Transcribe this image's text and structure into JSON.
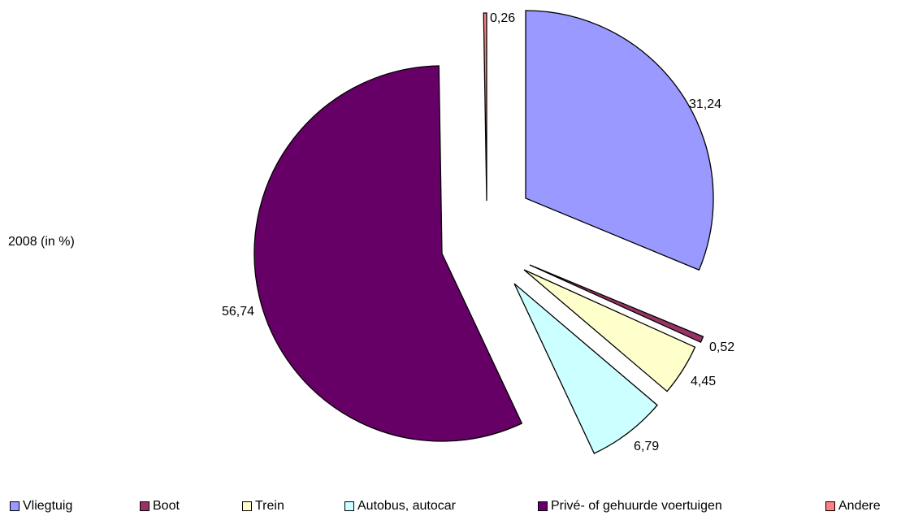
{
  "chart_data": {
    "type": "pie",
    "title": "",
    "side_label": "2008 (in %)",
    "legend_position": "bottom",
    "exploded": true,
    "slices": [
      {
        "name": "Vliegtuig",
        "value": 31.24,
        "label": "31,24",
        "color": "#9999ff"
      },
      {
        "name": "Boot",
        "value": 0.52,
        "label": "0,52",
        "color": "#993366"
      },
      {
        "name": "Trein",
        "value": 4.45,
        "label": "4,45",
        "color": "#ffffcc"
      },
      {
        "name": "Autobus, autocar",
        "value": 6.79,
        "label": "6,79",
        "color": "#ccffff"
      },
      {
        "name": "Privé- of gehuurde voertuigen",
        "value": 56.74,
        "label": "56,74",
        "color": "#660066"
      },
      {
        "name": "Andere",
        "value": 0.26,
        "label": "0,26",
        "color": "#ff8080"
      }
    ]
  }
}
